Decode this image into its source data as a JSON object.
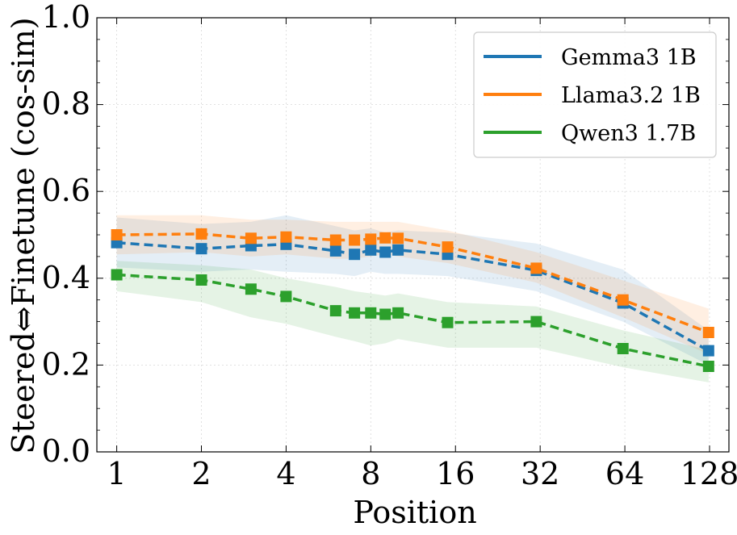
{
  "chart_data": {
    "type": "line",
    "xlabel": "Position",
    "ylabel": "Steered⇔Finetune (cos-sim)",
    "x_scale": "log2",
    "xlim": [
      0.85,
      150
    ],
    "ylim": [
      0.0,
      1.0
    ],
    "x_ticks": [
      1,
      2,
      4,
      8,
      16,
      32,
      64,
      128
    ],
    "x_tick_labels": [
      "1",
      "2",
      "4",
      "8",
      "16",
      "32",
      "64",
      "128"
    ],
    "y_ticks": [
      0.0,
      0.2,
      0.4,
      0.6,
      0.8,
      1.0
    ],
    "y_tick_labels": [
      "0.0",
      "0.2",
      "0.4",
      "0.6",
      "0.8",
      "1.0"
    ],
    "grid": true,
    "legend_position": "top-right",
    "x": [
      1,
      2,
      3,
      4,
      6,
      7,
      8,
      9,
      10,
      15,
      31,
      63,
      127
    ],
    "series": [
      {
        "name": "Gemma3 1B",
        "color": "#1f77b4",
        "values": [
          0.482,
          0.468,
          0.475,
          0.478,
          0.463,
          0.455,
          0.465,
          0.46,
          0.465,
          0.455,
          0.418,
          0.343,
          0.233
        ],
        "band_lower": [
          0.425,
          0.415,
          0.42,
          0.415,
          0.41,
          0.405,
          0.415,
          0.41,
          0.41,
          0.405,
          0.37,
          0.3,
          0.2
        ],
        "band_upper": [
          0.54,
          0.525,
          0.53,
          0.545,
          0.52,
          0.51,
          0.515,
          0.505,
          0.51,
          0.505,
          0.48,
          0.42,
          0.28
        ]
      },
      {
        "name": "Llama3.2 1B",
        "color": "#ff7f0e",
        "values": [
          0.5,
          0.502,
          0.492,
          0.495,
          0.488,
          0.488,
          0.49,
          0.493,
          0.492,
          0.472,
          0.423,
          0.35,
          0.275
        ],
        "band_lower": [
          0.455,
          0.46,
          0.45,
          0.455,
          0.445,
          0.445,
          0.45,
          0.455,
          0.45,
          0.435,
          0.39,
          0.31,
          0.225
        ],
        "band_upper": [
          0.545,
          0.545,
          0.535,
          0.535,
          0.53,
          0.53,
          0.53,
          0.53,
          0.53,
          0.51,
          0.46,
          0.395,
          0.33
        ]
      },
      {
        "name": "Qwen3 1.7B",
        "color": "#2ca02c",
        "values": [
          0.408,
          0.396,
          0.375,
          0.358,
          0.325,
          0.32,
          0.32,
          0.317,
          0.32,
          0.298,
          0.3,
          0.238,
          0.197
        ],
        "band_lower": [
          0.37,
          0.345,
          0.31,
          0.295,
          0.265,
          0.255,
          0.245,
          0.25,
          0.26,
          0.24,
          0.24,
          0.195,
          0.16
        ],
        "band_upper": [
          0.44,
          0.43,
          0.42,
          0.4,
          0.38,
          0.37,
          0.365,
          0.36,
          0.365,
          0.345,
          0.335,
          0.28,
          0.235
        ]
      }
    ]
  }
}
